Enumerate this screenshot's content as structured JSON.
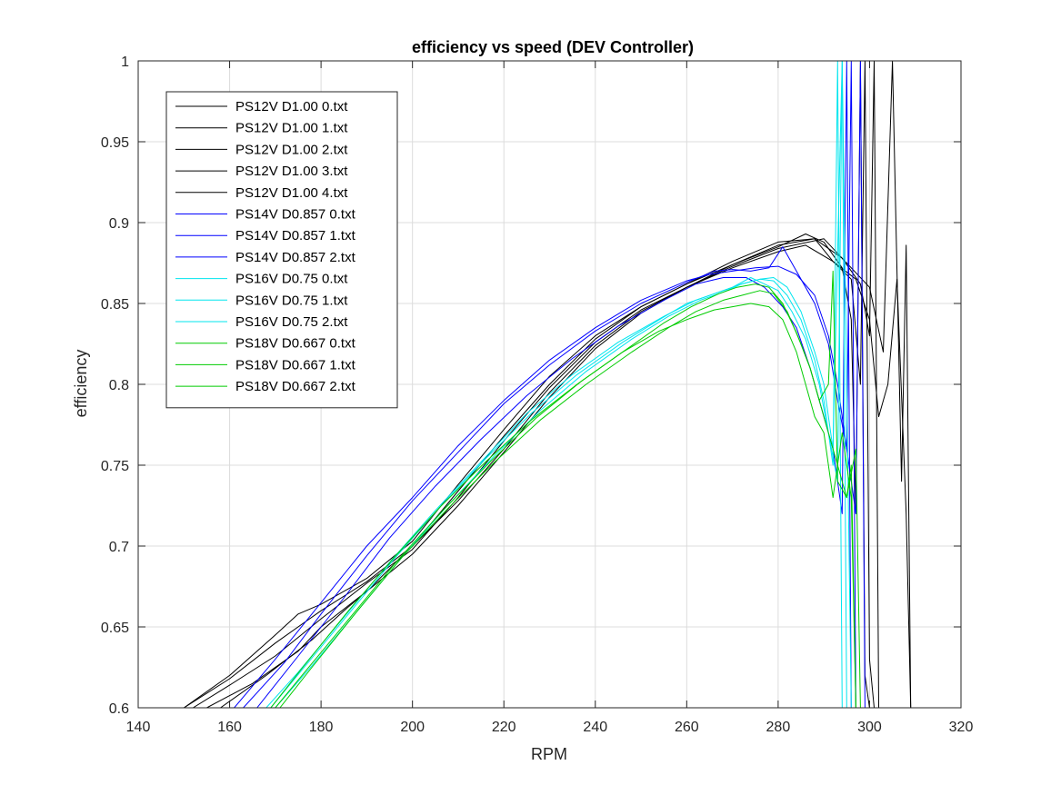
{
  "chart_data": {
    "type": "line",
    "title": "efficiency vs speed (DEV Controller)",
    "xlabel": "RPM",
    "ylabel": "efficiency",
    "xlim": [
      140,
      320
    ],
    "ylim": [
      0.6,
      1.0
    ],
    "xticks": [
      "140",
      "160",
      "180",
      "200",
      "220",
      "240",
      "260",
      "280",
      "300",
      "320"
    ],
    "yticks": [
      "0.6",
      "0.65",
      "0.7",
      "0.75",
      "0.8",
      "0.85",
      "0.9",
      "0.95",
      "1"
    ],
    "grid": true,
    "legend_position": "top-left",
    "series": [
      {
        "name": "PS12V D1.00 0.txt",
        "color": "#000000",
        "x": [
          150,
          160,
          170,
          175,
          180,
          190,
          200,
          210,
          220,
          230,
          240,
          250,
          260,
          270,
          280,
          286,
          290,
          294,
          296,
          297,
          298,
          299,
          300
        ],
        "y": [
          0.6,
          0.62,
          0.645,
          0.658,
          0.664,
          0.68,
          0.703,
          0.738,
          0.772,
          0.805,
          0.83,
          0.848,
          0.862,
          0.874,
          0.885,
          0.893,
          0.888,
          0.872,
          0.84,
          0.72,
          1.0,
          0.62,
          0.6
        ]
      },
      {
        "name": "PS12V D1.00 1.txt",
        "color": "#000000",
        "x": [
          150,
          160,
          170,
          176,
          180,
          190,
          200,
          210,
          220,
          230,
          240,
          250,
          260,
          270,
          280,
          288,
          292,
          296,
          298,
          299,
          300,
          301
        ],
        "y": [
          0.6,
          0.618,
          0.64,
          0.652,
          0.66,
          0.678,
          0.7,
          0.734,
          0.768,
          0.8,
          0.828,
          0.848,
          0.862,
          0.876,
          0.888,
          0.89,
          0.876,
          0.865,
          0.8,
          1.0,
          0.63,
          0.6
        ]
      },
      {
        "name": "PS12V D1.00 2.txt",
        "color": "#000000",
        "x": [
          152,
          160,
          170,
          180,
          190,
          200,
          210,
          220,
          230,
          240,
          250,
          260,
          270,
          280,
          288,
          294,
          298,
          300,
          301,
          302
        ],
        "y": [
          0.6,
          0.614,
          0.632,
          0.655,
          0.677,
          0.698,
          0.73,
          0.765,
          0.798,
          0.826,
          0.846,
          0.86,
          0.874,
          0.886,
          0.89,
          0.878,
          0.862,
          0.83,
          1.0,
          0.6
        ]
      },
      {
        "name": "PS12V D1.00 3.txt",
        "color": "#000000",
        "x": [
          155,
          165,
          175,
          180,
          190,
          200,
          210,
          220,
          230,
          240,
          250,
          260,
          270,
          280,
          290,
          296,
          300,
          303,
          305,
          307,
          308,
          309
        ],
        "y": [
          0.6,
          0.615,
          0.635,
          0.65,
          0.672,
          0.7,
          0.728,
          0.76,
          0.795,
          0.824,
          0.845,
          0.86,
          0.873,
          0.884,
          0.89,
          0.872,
          0.86,
          0.82,
          1.0,
          0.74,
          0.886,
          0.6
        ]
      },
      {
        "name": "PS12V D1.00 4.txt",
        "color": "#000000",
        "x": [
          158,
          168,
          178,
          185,
          190,
          200,
          210,
          220,
          230,
          240,
          250,
          260,
          270,
          280,
          286,
          292,
          297,
          300,
          302,
          304,
          306,
          308,
          309
        ],
        "y": [
          0.6,
          0.62,
          0.642,
          0.66,
          0.672,
          0.695,
          0.725,
          0.758,
          0.792,
          0.822,
          0.844,
          0.86,
          0.872,
          0.882,
          0.886,
          0.876,
          0.865,
          0.84,
          0.78,
          0.8,
          0.865,
          0.72,
          0.6
        ]
      },
      {
        "name": "PS14V D0.857 0.txt",
        "color": "#0000ff",
        "x": [
          161,
          170,
          180,
          190,
          200,
          210,
          220,
          230,
          240,
          250,
          260,
          265,
          270,
          275,
          280,
          284,
          288,
          291,
          293,
          295,
          297,
          298,
          299
        ],
        "y": [
          0.6,
          0.63,
          0.665,
          0.7,
          0.73,
          0.762,
          0.79,
          0.815,
          0.835,
          0.852,
          0.864,
          0.868,
          0.87,
          0.872,
          0.873,
          0.868,
          0.855,
          0.83,
          0.8,
          0.76,
          0.72,
          1.0,
          0.6
        ]
      },
      {
        "name": "PS14V D0.857 1.txt",
        "color": "#0000ff",
        "x": [
          163,
          172,
          180,
          190,
          200,
          210,
          220,
          230,
          240,
          250,
          260,
          266,
          270,
          274,
          278,
          281,
          284,
          288,
          291,
          293,
          295,
          296,
          297
        ],
        "y": [
          0.6,
          0.628,
          0.658,
          0.694,
          0.728,
          0.758,
          0.788,
          0.812,
          0.833,
          0.85,
          0.863,
          0.87,
          0.871,
          0.87,
          0.872,
          0.885,
          0.87,
          0.85,
          0.825,
          0.79,
          0.76,
          1.0,
          0.6
        ]
      },
      {
        "name": "PS14V D0.857 2.txt",
        "color": "#0000ff",
        "x": [
          166,
          175,
          185,
          195,
          205,
          215,
          225,
          235,
          245,
          255,
          262,
          268,
          273,
          277,
          281,
          284,
          287,
          290,
          292,
          294,
          295,
          296
        ],
        "y": [
          0.6,
          0.632,
          0.668,
          0.705,
          0.737,
          0.766,
          0.793,
          0.816,
          0.836,
          0.852,
          0.862,
          0.866,
          0.866,
          0.86,
          0.848,
          0.835,
          0.81,
          0.78,
          0.76,
          0.72,
          1.0,
          0.6
        ]
      },
      {
        "name": "PS16V D0.75 0.txt",
        "color": "#00e5ee",
        "x": [
          168,
          175,
          185,
          195,
          205,
          215,
          225,
          235,
          245,
          255,
          262,
          268,
          272,
          276,
          279,
          282,
          285,
          288,
          290,
          292,
          293,
          294
        ],
        "y": [
          0.6,
          0.622,
          0.656,
          0.69,
          0.722,
          0.752,
          0.782,
          0.806,
          0.826,
          0.842,
          0.852,
          0.858,
          0.862,
          0.865,
          0.864,
          0.855,
          0.84,
          0.815,
          0.79,
          0.75,
          1.0,
          0.6
        ]
      },
      {
        "name": "PS16V D0.75 1.txt",
        "color": "#00e5ee",
        "x": [
          170,
          178,
          188,
          198,
          208,
          218,
          228,
          238,
          248,
          256,
          263,
          268,
          272,
          276,
          279,
          282,
          285,
          288,
          290,
          292,
          294,
          295
        ],
        "y": [
          0.6,
          0.626,
          0.66,
          0.694,
          0.726,
          0.756,
          0.784,
          0.808,
          0.828,
          0.842,
          0.852,
          0.857,
          0.862,
          0.865,
          0.866,
          0.86,
          0.845,
          0.82,
          0.8,
          0.76,
          1.0,
          0.6
        ]
      },
      {
        "name": "PS16V D0.75 2.txt",
        "color": "#00e5ee",
        "x": [
          169,
          176,
          186,
          196,
          206,
          216,
          226,
          236,
          246,
          254,
          260,
          266,
          270,
          274,
          277,
          280,
          283,
          286,
          289,
          291,
          293,
          294,
          296
        ],
        "y": [
          0.6,
          0.624,
          0.658,
          0.692,
          0.724,
          0.754,
          0.782,
          0.806,
          0.826,
          0.84,
          0.85,
          0.856,
          0.86,
          0.866,
          0.862,
          0.858,
          0.845,
          0.828,
          0.8,
          0.77,
          0.74,
          1.0,
          0.6
        ]
      },
      {
        "name": "PS18V D0.667 0.txt",
        "color": "#00cc00",
        "x": [
          169,
          176,
          186,
          196,
          206,
          216,
          226,
          236,
          246,
          254,
          260,
          266,
          270,
          274,
          278,
          281,
          284,
          286,
          288,
          290,
          292,
          294,
          296,
          297
        ],
        "y": [
          0.6,
          0.625,
          0.66,
          0.693,
          0.724,
          0.752,
          0.778,
          0.8,
          0.82,
          0.833,
          0.84,
          0.846,
          0.848,
          0.85,
          0.848,
          0.84,
          0.82,
          0.8,
          0.78,
          0.77,
          0.73,
          0.77,
          0.73,
          0.6
        ]
      },
      {
        "name": "PS18V D0.667 1.txt",
        "color": "#00cc00",
        "x": [
          171,
          178,
          188,
          198,
          208,
          218,
          228,
          238,
          248,
          256,
          262,
          268,
          272,
          276,
          279,
          282,
          285,
          287,
          289,
          291,
          293,
          295,
          296,
          297
        ],
        "y": [
          0.6,
          0.625,
          0.66,
          0.694,
          0.724,
          0.752,
          0.778,
          0.8,
          0.82,
          0.835,
          0.845,
          0.852,
          0.855,
          0.858,
          0.856,
          0.845,
          0.825,
          0.81,
          0.79,
          0.77,
          0.75,
          0.73,
          0.75,
          0.6
        ]
      },
      {
        "name": "PS18V D0.667 2.txt",
        "color": "#00cc00",
        "x": [
          170,
          177,
          187,
          197,
          207,
          217,
          227,
          237,
          247,
          255,
          261,
          267,
          271,
          275,
          278,
          281,
          284,
          287,
          289,
          291,
          292,
          293,
          295,
          297,
          298
        ],
        "y": [
          0.6,
          0.624,
          0.658,
          0.692,
          0.723,
          0.752,
          0.779,
          0.802,
          0.822,
          0.838,
          0.848,
          0.856,
          0.86,
          0.862,
          0.86,
          0.85,
          0.832,
          0.81,
          0.79,
          0.8,
          0.87,
          0.74,
          0.73,
          0.76,
          0.6
        ]
      }
    ]
  }
}
